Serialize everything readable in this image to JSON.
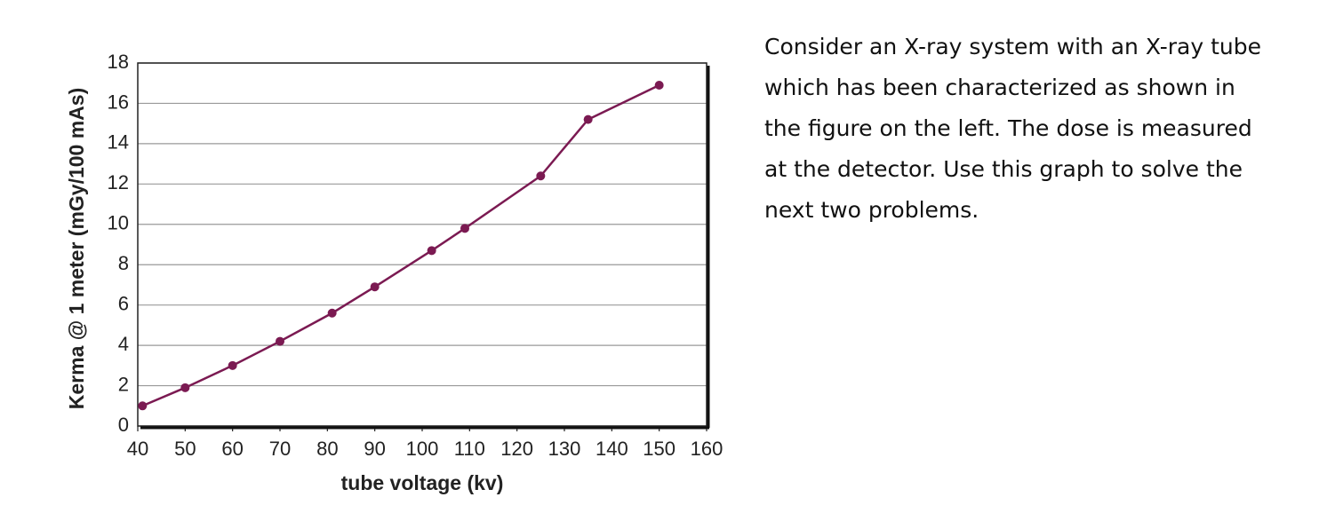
{
  "chart_data": {
    "type": "line",
    "x_label": "tube voltage (kv)",
    "y_label": "Kerma @ 1 meter (mGy/100 mAs)",
    "x": [
      41,
      50,
      60,
      70,
      81,
      90,
      102,
      109,
      125,
      135,
      150
    ],
    "series": [
      {
        "color": "#7b1a52",
        "values": [
          1.0,
          1.9,
          3.0,
          4.2,
          5.6,
          6.9,
          8.7,
          9.8,
          12.4,
          15.2,
          16.9
        ]
      }
    ],
    "xlim": [
      40,
      160
    ],
    "xticks": [
      40,
      50,
      60,
      70,
      80,
      90,
      100,
      110,
      120,
      130,
      140,
      150,
      160
    ],
    "ylim": [
      0,
      18
    ],
    "yticks": [
      0,
      2,
      4,
      6,
      8,
      10,
      12,
      14,
      16,
      18
    ],
    "grid": true
  },
  "paragraph": {
    "lines": [
      "Consider an X-ray system with an X-ray tube",
      "which has been characterized as shown in",
      "the figure on the left. The dose is measured",
      "at the detector. Use this graph to solve the",
      "next two problems."
    ]
  }
}
